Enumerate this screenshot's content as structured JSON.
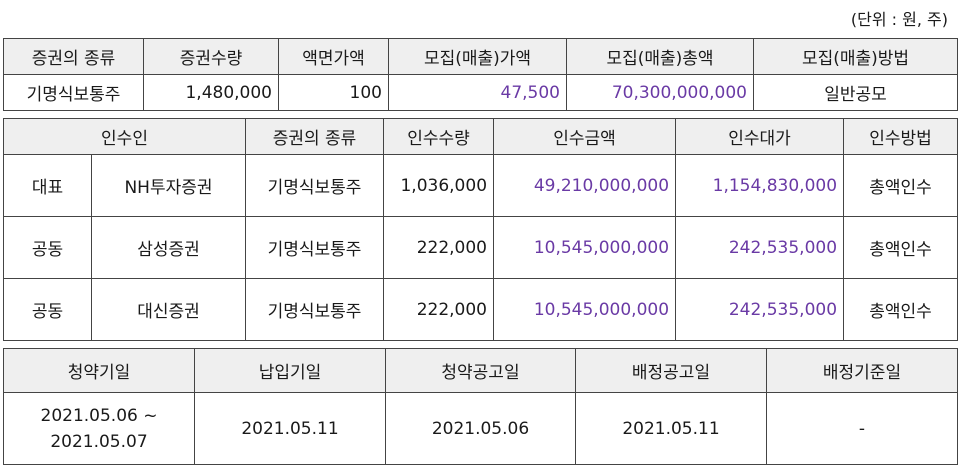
{
  "unit_note": "(단위 : 원, 주)",
  "securities": {
    "headers": [
      "증권의 종류",
      "증권수량",
      "액면가액",
      "모집(매출)가액",
      "모집(매출)총액",
      "모집(매출)방법"
    ],
    "row": {
      "type": "기명식보통주",
      "quantity": "1,480,000",
      "par_value": "100",
      "offer_price": "47,500",
      "offer_total": "70,300,000,000",
      "method": "일반공모"
    }
  },
  "underwriters": {
    "headers": [
      "인수인",
      "증권의 종류",
      "인수수량",
      "인수금액",
      "인수대가",
      "인수방법"
    ],
    "rows": [
      {
        "role": "대표",
        "name": "NH투자증권",
        "type": "기명식보통주",
        "quantity": "1,036,000",
        "amount": "49,210,000,000",
        "fee": "1,154,830,000",
        "method": "총액인수"
      },
      {
        "role": "공동",
        "name": "삼성증권",
        "type": "기명식보통주",
        "quantity": "222,000",
        "amount": "10,545,000,000",
        "fee": "242,535,000",
        "method": "총액인수"
      },
      {
        "role": "공동",
        "name": "대신증권",
        "type": "기명식보통주",
        "quantity": "222,000",
        "amount": "10,545,000,000",
        "fee": "242,535,000",
        "method": "총액인수"
      }
    ]
  },
  "schedule": {
    "headers": [
      "청약기일",
      "납입기일",
      "청약공고일",
      "배정공고일",
      "배정기준일"
    ],
    "row": {
      "subscription_start": "2021.05.06 ~",
      "subscription_end": "2021.05.07",
      "payment_date": "2021.05.11",
      "subscription_notice": "2021.05.06",
      "allocation_notice": "2021.05.11",
      "allocation_base": "-"
    }
  },
  "colors": {
    "header_bg": "#efefef",
    "highlight_text": "#6a3aa5",
    "border": "#444444"
  }
}
